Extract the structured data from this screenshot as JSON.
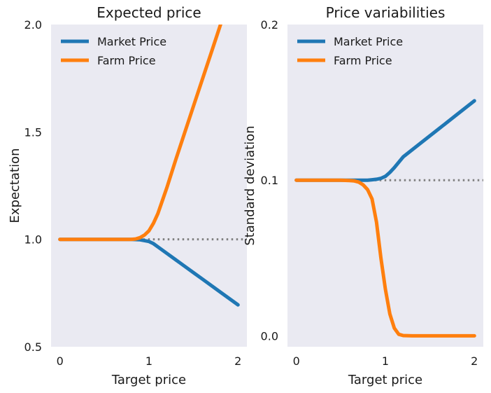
{
  "chart_data": [
    {
      "type": "line",
      "title": "Expected price",
      "xlabel": "Target price",
      "ylabel": "Expectation",
      "xlim": [
        -0.1,
        2.1
      ],
      "ylim": [
        0.5,
        2.0
      ],
      "xticks": [
        0,
        1,
        2
      ],
      "xtick_labels": [
        "0",
        "1",
        "2"
      ],
      "yticks": [
        0.5,
        1.0,
        1.5,
        2.0
      ],
      "ytick_labels": [
        "0.5",
        "1.0",
        "1.5",
        "2.0"
      ],
      "grid": false,
      "legend": "upper-left",
      "reference_line": {
        "y": 1.0,
        "style": "dotted",
        "color": "#808080"
      },
      "series": [
        {
          "name": "Market Price",
          "color": "#1f77b4",
          "x": [
            0,
            0.2,
            0.4,
            0.6,
            0.8,
            0.9,
            1.0,
            1.05,
            1.1,
            1.2,
            1.3,
            1.4,
            1.5,
            1.6,
            1.8,
            2.0
          ],
          "y": [
            1.0,
            1.0,
            1.0,
            1.0,
            1.0,
            0.998,
            0.99,
            0.98,
            0.965,
            0.935,
            0.905,
            0.875,
            0.845,
            0.815,
            0.755,
            0.695
          ]
        },
        {
          "name": "Farm Price",
          "color": "#ff7f0e",
          "x": [
            0,
            0.2,
            0.4,
            0.6,
            0.8,
            0.85,
            0.9,
            0.95,
            1.0,
            1.05,
            1.1,
            1.15,
            1.2,
            1.3,
            1.5,
            1.7,
            1.9,
            2.0
          ],
          "y": [
            1.0,
            1.0,
            1.0,
            1.0,
            1.0,
            1.002,
            1.008,
            1.02,
            1.04,
            1.075,
            1.12,
            1.18,
            1.24,
            1.37,
            1.62,
            1.87,
            2.12,
            2.24
          ]
        }
      ]
    },
    {
      "type": "line",
      "title": "Price variabilities",
      "xlabel": "Target price",
      "ylabel": "Standard deviation",
      "xlim": [
        -0.1,
        2.1
      ],
      "ylim": [
        -0.007,
        0.2
      ],
      "xticks": [
        0,
        1,
        2
      ],
      "xtick_labels": [
        "0",
        "1",
        "2"
      ],
      "yticks": [
        0.0,
        0.1,
        0.2
      ],
      "ytick_labels": [
        "0.0",
        "0.1",
        "0.2"
      ],
      "grid": false,
      "legend": "upper-left",
      "reference_line": {
        "y": 0.1,
        "style": "dotted",
        "color": "#808080"
      },
      "series": [
        {
          "name": "Market Price",
          "color": "#1f77b4",
          "x": [
            0,
            0.2,
            0.4,
            0.6,
            0.7,
            0.8,
            0.85,
            0.9,
            0.95,
            1.0,
            1.05,
            1.1,
            1.2,
            1.4,
            1.6,
            1.8,
            2.0
          ],
          "y": [
            0.1,
            0.1,
            0.1,
            0.1,
            0.1,
            0.1,
            0.1003,
            0.1006,
            0.1012,
            0.1025,
            0.105,
            0.108,
            0.115,
            0.124,
            0.133,
            0.142,
            0.151
          ]
        },
        {
          "name": "Farm Price",
          "color": "#ff7f0e",
          "x": [
            0,
            0.2,
            0.4,
            0.5,
            0.6,
            0.65,
            0.7,
            0.75,
            0.8,
            0.85,
            0.9,
            0.95,
            1.0,
            1.05,
            1.1,
            1.15,
            1.2,
            1.3,
            1.5,
            1.7,
            2.0
          ],
          "y": [
            0.1,
            0.1,
            0.1,
            0.1,
            0.0998,
            0.0995,
            0.0988,
            0.097,
            0.094,
            0.088,
            0.073,
            0.05,
            0.03,
            0.014,
            0.005,
            0.001,
            0.0002,
            0.0,
            0.0,
            0.0,
            0.0
          ]
        }
      ]
    }
  ]
}
